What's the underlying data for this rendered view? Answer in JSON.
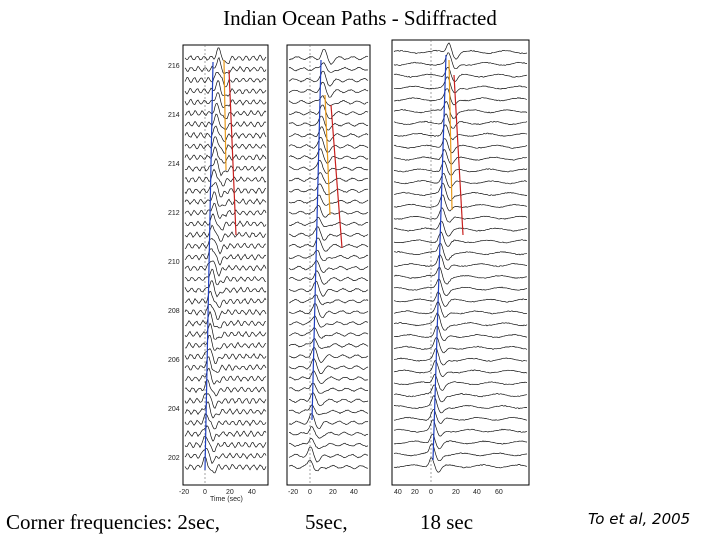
{
  "title": "Indian Ocean Paths - Sdiffracted",
  "captions": {
    "label": "Corner frequencies: 2sec,",
    "p2": "5sec,",
    "p3": "18 sec"
  },
  "credit": "To et al, 2005",
  "panel1": {
    "yticks": [
      "216",
      "214",
      "214",
      "212",
      "210",
      "208",
      "206",
      "204",
      "202"
    ],
    "xticks": [
      "-20",
      "0",
      "20",
      "40"
    ],
    "xlabel": "Time (sec)"
  },
  "panel2": {
    "xticks": [
      "-20",
      "0",
      "20",
      "40"
    ]
  },
  "panel3": {
    "xticks": [
      "40",
      "20",
      "0",
      "20",
      "40",
      "60"
    ]
  },
  "colors": {
    "trace": "#111111",
    "blue": "#1f3fbf",
    "orange": "#e89a1a",
    "red": "#c8201e"
  }
}
